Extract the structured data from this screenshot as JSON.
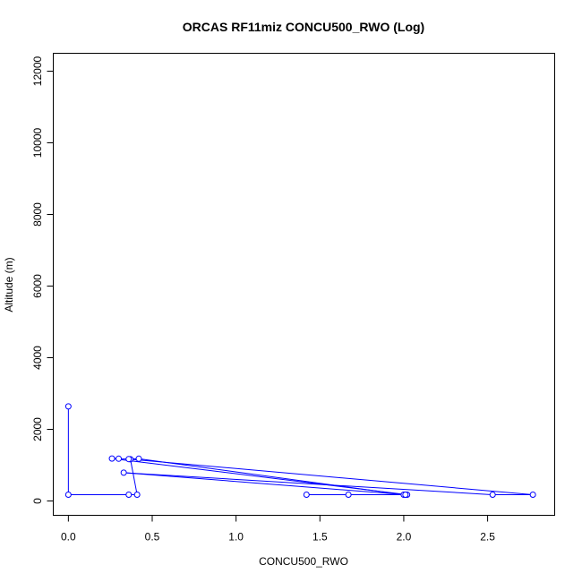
{
  "chart_data": {
    "type": "line",
    "title": "ORCAS RF11miz CONCU500_RWO (Log)",
    "xlabel": "CONCU500_RWO",
    "ylabel": "Altitude (m)",
    "xlim": [
      -0.09,
      2.9
    ],
    "ylim": [
      -400,
      12500
    ],
    "x_ticks": [
      0.0,
      0.5,
      1.0,
      1.5,
      2.0,
      2.5
    ],
    "x_tick_labels": [
      "0.0",
      "0.5",
      "1.0",
      "1.5",
      "2.0",
      "2.5"
    ],
    "y_ticks": [
      0,
      2000,
      4000,
      6000,
      8000,
      10000,
      12000
    ],
    "y_tick_labels": [
      "0",
      "2000",
      "4000",
      "6000",
      "8000",
      "10000",
      "12000"
    ],
    "grid": false,
    "series": [
      {
        "color": "#0000ff",
        "points": [
          [
            0.0,
            2640
          ],
          [
            0.0,
            175
          ],
          [
            0.36,
            175
          ],
          [
            0.41,
            175
          ],
          [
            0.37,
            1165
          ],
          [
            0.3,
            1180
          ],
          [
            0.26,
            1185
          ],
          [
            2.02,
            175
          ],
          [
            1.42,
            175
          ],
          [
            1.67,
            175
          ],
          [
            2.0,
            175
          ],
          [
            0.42,
            1180
          ],
          [
            0.36,
            1170
          ],
          [
            2.77,
            175
          ],
          [
            2.53,
            175
          ],
          [
            0.33,
            790
          ],
          [
            2.01,
            175
          ]
        ]
      }
    ]
  }
}
